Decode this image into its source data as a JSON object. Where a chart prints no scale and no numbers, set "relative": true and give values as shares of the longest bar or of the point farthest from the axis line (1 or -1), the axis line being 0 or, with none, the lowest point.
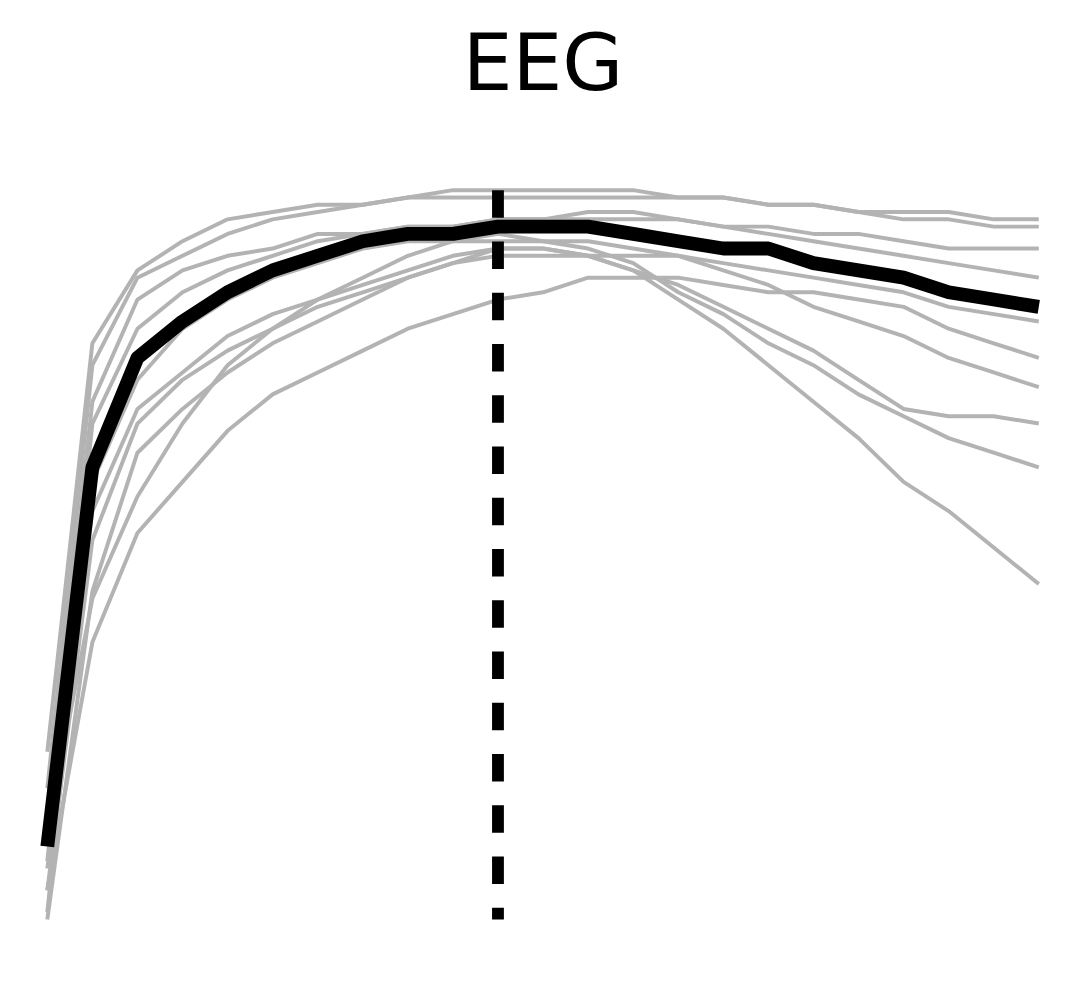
{
  "chart_data": {
    "type": "line",
    "title": "EEG",
    "relative": true,
    "line_style": "solid",
    "marker": "none",
    "categories": [
      null,
      null,
      null,
      null,
      null,
      null,
      null,
      null,
      null,
      null,
      null,
      null,
      null,
      null,
      null,
      null,
      null,
      null,
      null,
      null,
      null,
      null,
      null
    ],
    "series": [
      {
        "color": "#b3b3b3",
        "values": [
          0,
          0.45,
          0.64,
          0.7,
          0.75,
          0.79,
          0.82,
          0.85,
          0.88,
          0.9,
          0.92,
          0.92,
          0.91,
          0.89,
          0.85,
          0.81,
          0.76,
          0.71,
          0.66,
          0.6,
          0.56,
          0.51,
          0.46
        ]
      },
      {
        "color": "#b3b3b3",
        "values": [
          0.04,
          0.52,
          0.68,
          0.74,
          0.78,
          0.81,
          0.85,
          0.88,
          0.91,
          0.93,
          0.94,
          0.93,
          0.92,
          0.9,
          0.86,
          0.83,
          0.79,
          0.76,
          0.72,
          0.69,
          0.66,
          0.64,
          0.62
        ]
      },
      {
        "color": "#b3b3b3",
        "values": [
          0.07,
          0.56,
          0.7,
          0.75,
          0.8,
          0.83,
          0.85,
          0.87,
          0.89,
          0.91,
          0.92,
          0.92,
          0.91,
          0.89,
          0.87,
          0.84,
          0.81,
          0.78,
          0.74,
          0.7,
          0.69,
          0.69,
          0.68
        ]
      },
      {
        "color": "#b3b3b3",
        "values": [
          0.23,
          0.79,
          0.89,
          0.93,
          0.96,
          0.97,
          0.98,
          0.98,
          0.99,
          0.99,
          0.99,
          0.99,
          0.99,
          0.99,
          0.99,
          0.99,
          0.98,
          0.98,
          0.97,
          0.96,
          0.96,
          0.95,
          0.95
        ]
      },
      {
        "color": "#b3b3b3",
        "values": [
          0.18,
          0.76,
          0.88,
          0.91,
          0.94,
          0.96,
          0.97,
          0.98,
          0.99,
          1.0,
          1.0,
          1.0,
          1.0,
          1.0,
          0.99,
          0.99,
          0.98,
          0.98,
          0.97,
          0.97,
          0.97,
          0.96,
          0.96
        ]
      },
      {
        "color": "#b3b3b3",
        "values": [
          0.12,
          0.44,
          0.58,
          0.68,
          0.76,
          0.81,
          0.84,
          0.86,
          0.88,
          0.9,
          0.91,
          0.91,
          0.91,
          0.91,
          0.91,
          0.9,
          0.89,
          0.88,
          0.87,
          0.86,
          0.84,
          0.83,
          0.82
        ]
      },
      {
        "color": "#b3b3b3",
        "values": [
          0.04,
          0.38,
          0.53,
          0.6,
          0.67,
          0.72,
          0.75,
          0.78,
          0.81,
          0.83,
          0.85,
          0.86,
          0.88,
          0.88,
          0.88,
          0.87,
          0.86,
          0.86,
          0.85,
          0.84,
          0.81,
          0.79,
          0.77
        ]
      },
      {
        "color": "#b3b3b3",
        "values": [
          0.08,
          0.68,
          0.81,
          0.86,
          0.89,
          0.91,
          0.93,
          0.94,
          0.95,
          0.95,
          0.96,
          0.96,
          0.97,
          0.97,
          0.96,
          0.95,
          0.94,
          0.93,
          0.92,
          0.91,
          0.9,
          0.89,
          0.88
        ]
      },
      {
        "color": "#b3b3b3",
        "values": [
          0.01,
          0.6,
          0.74,
          0.81,
          0.85,
          0.88,
          0.9,
          0.92,
          0.93,
          0.93,
          0.93,
          0.93,
          0.93,
          0.92,
          0.91,
          0.89,
          0.87,
          0.84,
          0.82,
          0.8,
          0.77,
          0.75,
          0.73
        ]
      },
      {
        "color": "#b3b3b3",
        "values": [
          0.15,
          0.71,
          0.85,
          0.89,
          0.91,
          0.92,
          0.94,
          0.94,
          0.95,
          0.95,
          0.96,
          0.96,
          0.96,
          0.96,
          0.96,
          0.95,
          0.95,
          0.94,
          0.94,
          0.93,
          0.92,
          0.92,
          0.92
        ]
      },
      {
        "color": "#000000",
        "values": [
          0.1,
          0.62,
          0.77,
          0.82,
          0.86,
          0.89,
          0.91,
          0.93,
          0.94,
          0.94,
          0.95,
          0.95,
          0.95,
          0.94,
          0.93,
          0.92,
          0.92,
          0.9,
          0.89,
          0.88,
          0.86,
          0.85,
          0.84
        ]
      }
    ]
  }
}
